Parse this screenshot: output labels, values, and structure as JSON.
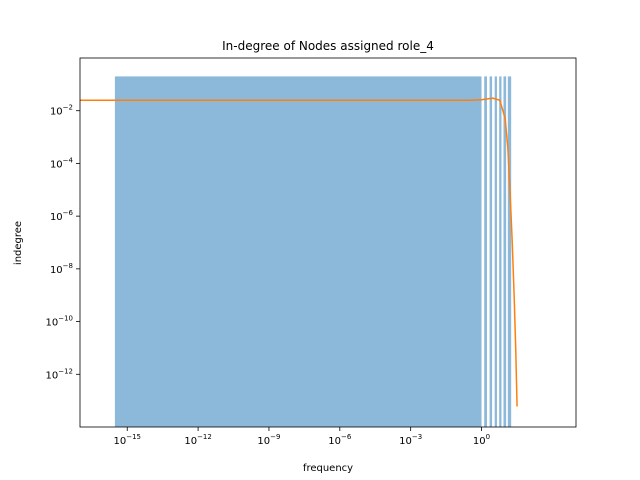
{
  "chart_data": {
    "type": "bar",
    "title": "In-degree of Nodes assigned role_4",
    "xlabel": "frequency",
    "ylabel": "indegree",
    "xscale": "log",
    "yscale": "log",
    "xlim": [
      1e-17,
      10000.0
    ],
    "ylim": [
      1e-14,
      1
    ],
    "grid": false,
    "legend": "none",
    "x_ticks": [
      {
        "base": "10",
        "exp": "−15",
        "value": 1e-15
      },
      {
        "base": "10",
        "exp": "−12",
        "value": 1e-12
      },
      {
        "base": "10",
        "exp": "−9",
        "value": 1e-09
      },
      {
        "base": "10",
        "exp": "−6",
        "value": 1e-06
      },
      {
        "base": "10",
        "exp": "−3",
        "value": 0.001
      },
      {
        "base": "10",
        "exp": "0",
        "value": 1
      }
    ],
    "y_ticks": [
      {
        "base": "10",
        "exp": "−2",
        "value": 0.01
      },
      {
        "base": "10",
        "exp": "−4",
        "value": 0.0001
      },
      {
        "base": "10",
        "exp": "−6",
        "value": 1e-06
      },
      {
        "base": "10",
        "exp": "−8",
        "value": 1e-08
      },
      {
        "base": "10",
        "exp": "−10",
        "value": 1e-10
      },
      {
        "base": "10",
        "exp": "−12",
        "value": 1e-12
      }
    ],
    "histogram": {
      "color": "#8cb8d9",
      "bars": [
        {
          "x0": 3e-16,
          "x1": 1.0,
          "value": 0.2
        },
        {
          "x0": 1.3,
          "x1": 1.7,
          "value": 0.2
        },
        {
          "x0": 2.2,
          "x1": 2.8,
          "value": 0.2
        },
        {
          "x0": 3.6,
          "x1": 4.5,
          "value": 0.2
        },
        {
          "x0": 5.6,
          "x1": 7.0,
          "value": 0.2
        },
        {
          "x0": 8.5,
          "x1": 11.0,
          "value": 0.2
        },
        {
          "x0": 13.0,
          "x1": 18.0,
          "value": 0.2
        }
      ]
    },
    "series": [
      {
        "type": "line",
        "color": "#ff7f0e",
        "x": [
          1e-17,
          1e-10,
          0.001,
          0.3,
          1,
          3,
          6,
          10,
          13,
          16,
          20,
          24,
          28,
          32
        ],
        "y": [
          0.025,
          0.025,
          0.025,
          0.025,
          0.026,
          0.03,
          0.025,
          0.005,
          0.0004,
          1e-05,
          1e-07,
          1e-09,
          1e-11,
          6e-14
        ]
      }
    ]
  }
}
